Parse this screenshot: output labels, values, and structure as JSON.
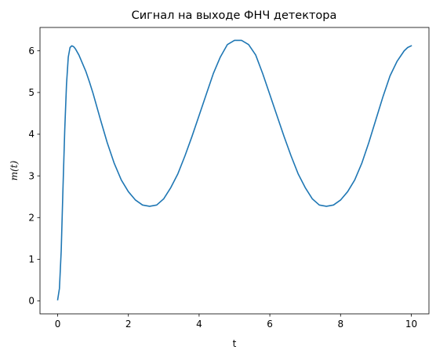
{
  "chart_data": {
    "type": "line",
    "title": "Сигнал на выходе ФНЧ детектора",
    "xlabel": "t",
    "ylabel": "m(t)",
    "xlim": [
      -0.5,
      10.5
    ],
    "ylim": [
      -0.31,
      6.56
    ],
    "xticks": [
      0,
      2,
      4,
      6,
      8,
      10
    ],
    "yticks": [
      0,
      1,
      2,
      3,
      4,
      5,
      6
    ],
    "grid": false,
    "legend": "none",
    "series": [
      {
        "color": "#1f77b4",
        "x": [
          0.0,
          0.05,
          0.1,
          0.15,
          0.2,
          0.25,
          0.3,
          0.35,
          0.4,
          0.45,
          0.5,
          0.6,
          0.7,
          0.8,
          0.9,
          1.0,
          1.2,
          1.4,
          1.6,
          1.8,
          2.0,
          2.2,
          2.4,
          2.6,
          2.8,
          3.0,
          3.2,
          3.4,
          3.6,
          3.8,
          4.0,
          4.2,
          4.4,
          4.6,
          4.8,
          5.0,
          5.2,
          5.4,
          5.6,
          5.8,
          6.0,
          6.2,
          6.4,
          6.6,
          6.8,
          7.0,
          7.2,
          7.4,
          7.6,
          7.8,
          8.0,
          8.2,
          8.4,
          8.6,
          8.8,
          9.0,
          9.2,
          9.4,
          9.6,
          9.8,
          9.9,
          10.0
        ],
        "y": [
          0.03,
          0.3,
          1.2,
          2.7,
          4.1,
          5.2,
          5.85,
          6.08,
          6.12,
          6.1,
          6.05,
          5.9,
          5.7,
          5.5,
          5.25,
          4.98,
          4.38,
          3.8,
          3.3,
          2.9,
          2.62,
          2.42,
          2.3,
          2.27,
          2.3,
          2.45,
          2.72,
          3.05,
          3.48,
          3.95,
          4.45,
          4.95,
          5.45,
          5.85,
          6.15,
          6.25,
          6.25,
          6.15,
          5.9,
          5.45,
          4.95,
          4.45,
          3.95,
          3.48,
          3.05,
          2.72,
          2.45,
          2.3,
          2.27,
          2.3,
          2.42,
          2.62,
          2.9,
          3.3,
          3.8,
          4.35,
          4.9,
          5.4,
          5.75,
          6.0,
          6.08,
          6.12
        ]
      }
    ]
  }
}
